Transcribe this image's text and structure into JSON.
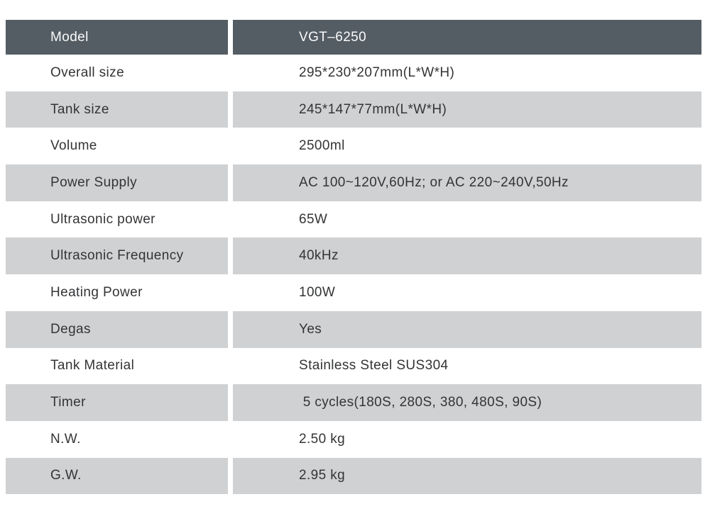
{
  "table": {
    "header": {
      "label": "Model",
      "value": "VGT–6250"
    },
    "rows": [
      {
        "label": "Overall size",
        "value": "295*230*207mm(L*W*H)"
      },
      {
        "label": "Tank size",
        "value": "245*147*77mm(L*W*H)"
      },
      {
        "label": "Volume",
        "value": "2500ml"
      },
      {
        "label": "Power Supply",
        "value": "AC 100~120V,60Hz; or AC 220~240V,50Hz"
      },
      {
        "label": "Ultrasonic power",
        "value": "65W"
      },
      {
        "label": "Ultrasonic Frequency",
        "value": "40kHz"
      },
      {
        "label": "Heating Power",
        "value": "100W"
      },
      {
        "label": "Degas",
        "value": "Yes"
      },
      {
        "label": "Tank Material",
        "value": "Stainless Steel SUS304"
      },
      {
        "label": "Timer",
        "value": " 5 cycles(180S, 280S, 380, 480S, 90S)"
      },
      {
        "label": "N.W.",
        "value": "2.50 kg"
      },
      {
        "label": "G.W.",
        "value": "2.95 kg"
      }
    ],
    "colors": {
      "header_bg": "#545d64",
      "header_text": "#fafafa",
      "row_alt_bg": "#cfd1d3",
      "row_text": "#333436",
      "divider": "#ffffff"
    }
  }
}
